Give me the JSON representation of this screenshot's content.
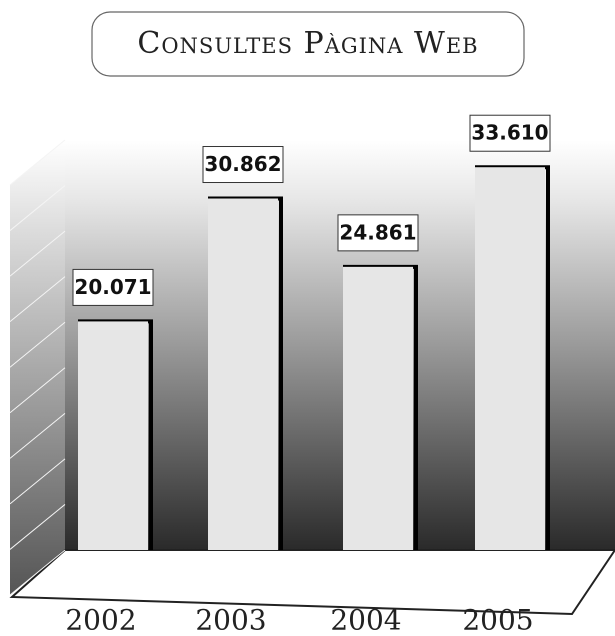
{
  "chart_data": {
    "type": "bar",
    "title": "Consultes Pàgina Web",
    "categories": [
      "2002",
      "2003",
      "2004",
      "2005"
    ],
    "values": [
      20071,
      30862,
      24861,
      33610
    ],
    "value_labels": [
      "20.071",
      "30.862",
      "24.861",
      "33.610"
    ],
    "color": "#e6e6e6",
    "ylim": [
      0,
      36000
    ],
    "yticks": [
      0,
      4000,
      8000,
      12000,
      16000,
      20000,
      24000,
      28000,
      32000,
      36000
    ],
    "grid": true
  }
}
